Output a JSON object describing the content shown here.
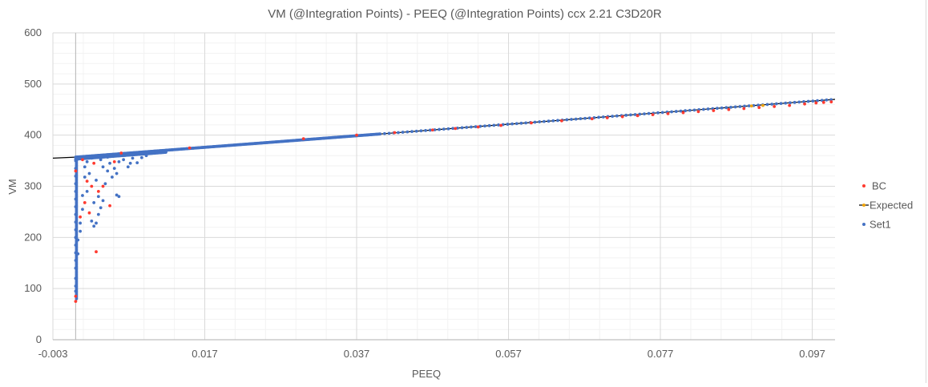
{
  "chart_data": {
    "type": "scatter",
    "title": "VM (@Integration Points) - PEEQ (@Integration Points) ccx 2.21 C3D20R",
    "xlabel": "PEEQ",
    "ylabel": "VM",
    "xlim": [
      -0.003,
      0.1
    ],
    "ylim": [
      0,
      600
    ],
    "x_ticks": [
      -0.003,
      0.017,
      0.037,
      0.057,
      0.077,
      0.097
    ],
    "x_tick_labels": [
      "-0.003",
      "0.017",
      "0.037",
      "0.057",
      "0.077",
      "0.097"
    ],
    "y_ticks": [
      0,
      100,
      200,
      300,
      400,
      500,
      600
    ],
    "y_tick_labels": [
      "0",
      "100",
      "200",
      "300",
      "400",
      "500",
      "600"
    ],
    "grid": true,
    "legend_position": "right",
    "series": [
      {
        "name": "BC",
        "color": "#ff3b30",
        "marker": "dot",
        "points": [
          [
            0.0,
            75
          ],
          [
            0.0,
            85
          ],
          [
            0.0,
            330
          ],
          [
            0.0006,
            240
          ],
          [
            0.0012,
            268
          ],
          [
            0.0018,
            248
          ],
          [
            0.0015,
            310
          ],
          [
            0.0021,
            300
          ],
          [
            0.0027,
            172
          ],
          [
            0.003,
            290
          ],
          [
            0.0036,
            300
          ],
          [
            0.0045,
            262
          ],
          [
            0.0024,
            345
          ],
          [
            0.0051,
            348
          ],
          [
            0.0009,
            352
          ],
          [
            0.006,
            365
          ],
          [
            0.015,
            375
          ],
          [
            0.03,
            393
          ],
          [
            0.037,
            400
          ],
          [
            0.042,
            405
          ],
          [
            0.047,
            410
          ],
          [
            0.05,
            413
          ],
          [
            0.053,
            416
          ],
          [
            0.056,
            419
          ],
          [
            0.06,
            424
          ],
          [
            0.064,
            428
          ],
          [
            0.068,
            432
          ],
          [
            0.07,
            434
          ],
          [
            0.072,
            436
          ],
          [
            0.074,
            438
          ],
          [
            0.076,
            440
          ],
          [
            0.078,
            442
          ],
          [
            0.08,
            444
          ],
          [
            0.082,
            446
          ],
          [
            0.084,
            448
          ],
          [
            0.086,
            450
          ],
          [
            0.088,
            452
          ],
          [
            0.09,
            454
          ],
          [
            0.092,
            456
          ],
          [
            0.094,
            458
          ],
          [
            0.096,
            461
          ],
          [
            0.0975,
            463
          ],
          [
            0.0985,
            464
          ],
          [
            0.0995,
            465
          ]
        ]
      },
      {
        "name": "Expected",
        "color": "#f0a30a",
        "line_color": "#000000",
        "marker": "line",
        "x": [
          -0.003,
          0.0,
          0.1
        ],
        "y": [
          355,
          357,
          470
        ],
        "points": [
          [
            0.089,
            457
          ],
          [
            0.0905,
            458
          ]
        ]
      },
      {
        "name": "Set1",
        "color": "#4472c4",
        "marker": "dot",
        "points": [
          [
            0.0,
            95
          ],
          [
            0.0,
            105
          ],
          [
            0.0,
            120
          ],
          [
            0.0,
            140
          ],
          [
            0.0,
            155
          ],
          [
            0.0,
            170
          ],
          [
            0.0,
            185
          ],
          [
            0.0,
            200
          ],
          [
            0.0,
            215
          ],
          [
            0.0,
            230
          ],
          [
            0.0,
            245
          ],
          [
            0.0,
            260
          ],
          [
            0.0,
            275
          ],
          [
            0.0,
            290
          ],
          [
            0.0,
            305
          ],
          [
            0.0,
            320
          ],
          [
            0.0,
            335
          ],
          [
            0.0,
            350
          ],
          [
            0.0003,
            168
          ],
          [
            0.0003,
            195
          ],
          [
            0.0006,
            212
          ],
          [
            0.0006,
            228
          ],
          [
            0.0009,
            255
          ],
          [
            0.0009,
            282
          ],
          [
            0.0012,
            318
          ],
          [
            0.0012,
            338
          ],
          [
            0.0015,
            290
          ],
          [
            0.0018,
            325
          ],
          [
            0.0021,
            232
          ],
          [
            0.0024,
            222
          ],
          [
            0.0024,
            268
          ],
          [
            0.0027,
            228
          ],
          [
            0.0027,
            312
          ],
          [
            0.003,
            245
          ],
          [
            0.003,
            280
          ],
          [
            0.0033,
            258
          ],
          [
            0.0036,
            272
          ],
          [
            0.0036,
            338
          ],
          [
            0.0039,
            305
          ],
          [
            0.0042,
            330
          ],
          [
            0.0045,
            345
          ],
          [
            0.0048,
            318
          ],
          [
            0.0051,
            335
          ],
          [
            0.0054,
            325
          ],
          [
            0.0057,
            348
          ],
          [
            0.0054,
            283
          ],
          [
            0.0057,
            280
          ],
          [
            0.0063,
            352
          ],
          [
            0.0069,
            338
          ],
          [
            0.0072,
            345
          ],
          [
            0.0075,
            355
          ],
          [
            0.0081,
            346
          ],
          [
            0.0087,
            356
          ],
          [
            0.0093,
            360
          ],
          [
            0.0021,
            355
          ],
          [
            0.0033,
            352
          ],
          [
            0.0042,
            357
          ],
          [
            0.0015,
            348
          ]
        ]
      }
    ]
  }
}
